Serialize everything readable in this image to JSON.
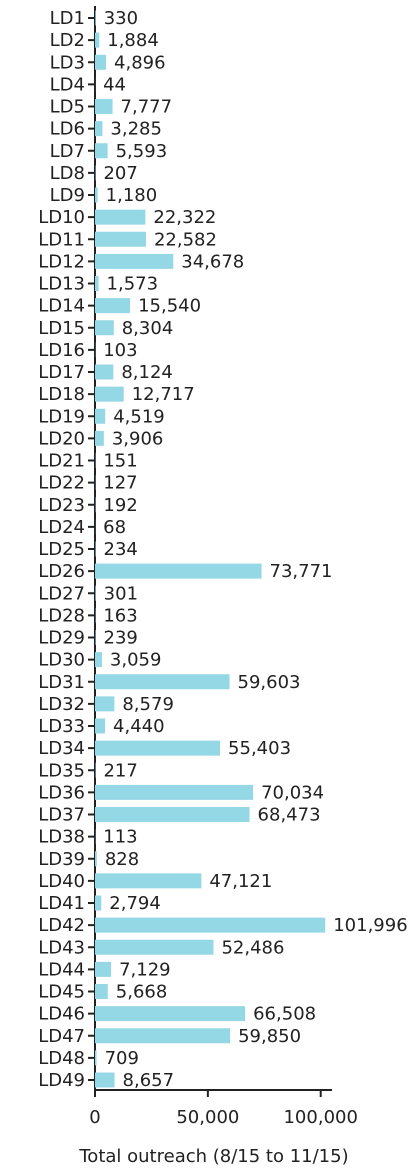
{
  "chart_data": {
    "type": "barh",
    "xlabel": "Total outreach (8/15 to 11/15)",
    "categories": [
      "LD1",
      "LD2",
      "LD3",
      "LD4",
      "LD5",
      "LD6",
      "LD7",
      "LD8",
      "LD9",
      "LD10",
      "LD11",
      "LD12",
      "LD13",
      "LD14",
      "LD15",
      "LD16",
      "LD17",
      "LD18",
      "LD19",
      "LD20",
      "LD21",
      "LD22",
      "LD23",
      "LD24",
      "LD25",
      "LD26",
      "LD27",
      "LD28",
      "LD29",
      "LD30",
      "LD31",
      "LD32",
      "LD33",
      "LD34",
      "LD35",
      "LD36",
      "LD37",
      "LD38",
      "LD39",
      "LD40",
      "LD41",
      "LD42",
      "LD43",
      "LD44",
      "LD45",
      "LD46",
      "LD47",
      "LD48",
      "LD49"
    ],
    "values": [
      330,
      1884,
      4896,
      44,
      7777,
      3285,
      5593,
      207,
      1180,
      22322,
      22582,
      34678,
      1573,
      15540,
      8304,
      103,
      8124,
      12717,
      4519,
      3906,
      151,
      127,
      192,
      68,
      234,
      73771,
      301,
      163,
      239,
      3059,
      59603,
      8579,
      4440,
      55403,
      217,
      70034,
      68473,
      113,
      828,
      47121,
      2794,
      101996,
      52486,
      7129,
      5668,
      66508,
      59850,
      709,
      8657
    ],
    "value_labels": [
      "330",
      "1,884",
      "4,896",
      "44",
      "7,777",
      "3,285",
      "5,593",
      "207",
      "1,180",
      "22,322",
      "22,582",
      "34,678",
      "1,573",
      "15,540",
      "8,304",
      "103",
      "8,124",
      "12,717",
      "4,519",
      "3,906",
      "151",
      "127",
      "192",
      "68",
      "234",
      "73,771",
      "301",
      "163",
      "239",
      "3,059",
      "59,603",
      "8,579",
      "4,440",
      "55,403",
      "217",
      "70,034",
      "68,473",
      "113",
      "828",
      "47,121",
      "2,794",
      "101,996",
      "52,486",
      "7,129",
      "5,668",
      "66,508",
      "59,850",
      "709",
      "8,657"
    ],
    "color": "#94d7e5",
    "xlim": [
      0,
      105000
    ],
    "xticks": [
      0,
      {
        "value": 50000,
        "label": "50,000"
      },
      {
        "value": 100000,
        "label": "100,000"
      }
    ]
  }
}
